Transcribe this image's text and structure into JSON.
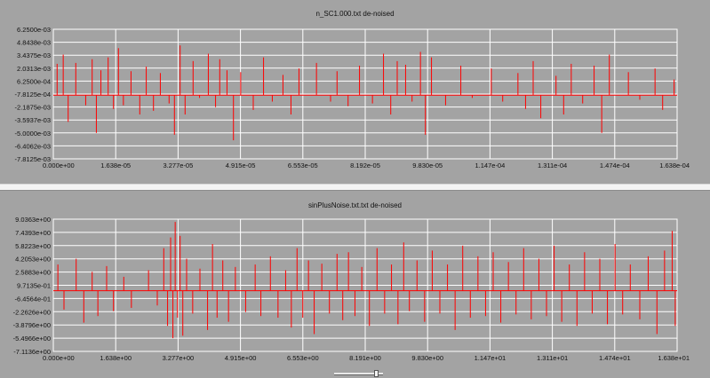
{
  "colors": {
    "background": "#a3a3a3",
    "grid": "#ffffff",
    "signal": "#ff0000"
  },
  "chart_data": [
    {
      "type": "line",
      "title": "n_SC1.000.txt de-noised",
      "xlabel": "",
      "ylabel": "",
      "xlim": [
        0,
        0.0001638
      ],
      "ylim": [
        -0.0078125,
        0.00625
      ],
      "xtick_labels": [
        "0.000e+00",
        "1.638e-05",
        "3.277e-05",
        "4.915e-05",
        "6.553e-05",
        "8.192e-05",
        "9.830e-05",
        "1.147e-04",
        "1.311e-04",
        "1.474e-04",
        "1.638e-04"
      ],
      "ytick_labels": [
        "6.2500e-03",
        "4.8438e-03",
        "3.4375e-03",
        "2.0313e-03",
        "6.2500e-04",
        "-7.8125e-04",
        "-2.1875e-03",
        "-3.5937e-03",
        "-5.0000e-03",
        "-6.4062e-03",
        "-7.8125e-03"
      ],
      "baseline": -0.0009,
      "grid": true,
      "spikes": [
        {
          "x": 1e-06,
          "v": 0.0025
        },
        {
          "x": 2.6e-06,
          "v": 0.0035
        },
        {
          "x": 3.9e-06,
          "v": -0.0038
        },
        {
          "x": 5.9e-06,
          "v": 0.0026
        },
        {
          "x": 8.5e-06,
          "v": -0.002
        },
        {
          "x": 1.02e-05,
          "v": 0.003
        },
        {
          "x": 1.13e-05,
          "v": -0.005
        },
        {
          "x": 1.25e-05,
          "v": 0.0018
        },
        {
          "x": 1.44e-05,
          "v": 0.0032
        },
        {
          "x": 1.58e-05,
          "v": -0.0024
        },
        {
          "x": 1.71e-05,
          "v": 0.0042
        },
        {
          "x": 1.84e-05,
          "v": -0.002
        },
        {
          "x": 2.04e-05,
          "v": 0.0017
        },
        {
          "x": 2.27e-05,
          "v": -0.003
        },
        {
          "x": 2.44e-05,
          "v": 0.0022
        },
        {
          "x": 2.63e-05,
          "v": -0.0026
        },
        {
          "x": 2.81e-05,
          "v": 0.0015
        },
        {
          "x": 3.04e-05,
          "v": -0.0018
        },
        {
          "x": 3.18e-05,
          "v": -0.0052
        },
        {
          "x": 3.33e-05,
          "v": 0.0045
        },
        {
          "x": 3.46e-05,
          "v": -0.003
        },
        {
          "x": 3.67e-05,
          "v": 0.0028
        },
        {
          "x": 3.84e-05,
          "v": -0.0012
        },
        {
          "x": 4.07e-05,
          "v": 0.0036
        },
        {
          "x": 4.26e-05,
          "v": -0.0022
        },
        {
          "x": 4.37e-05,
          "v": 0.003
        },
        {
          "x": 4.56e-05,
          "v": 0.0018
        },
        {
          "x": 4.73e-05,
          "v": -0.0058
        },
        {
          "x": 4.92e-05,
          "v": 0.0016
        },
        {
          "x": 5.25e-05,
          "v": -0.0025
        },
        {
          "x": 5.52e-05,
          "v": 0.0032
        },
        {
          "x": 5.75e-05,
          "v": -0.0016
        },
        {
          "x": 6.03e-05,
          "v": 0.0013
        },
        {
          "x": 6.24e-05,
          "v": -0.003
        },
        {
          "x": 6.45e-05,
          "v": 0.002
        },
        {
          "x": 6.91e-05,
          "v": 0.0026
        },
        {
          "x": 7.28e-05,
          "v": -0.0016
        },
        {
          "x": 7.45e-05,
          "v": 0.0017
        },
        {
          "x": 7.74e-05,
          "v": -0.0021
        },
        {
          "x": 8.04e-05,
          "v": 0.0023
        },
        {
          "x": 8.38e-05,
          "v": -0.0018
        },
        {
          "x": 8.67e-05,
          "v": 0.0036
        },
        {
          "x": 8.86e-05,
          "v": -0.003
        },
        {
          "x": 9.03e-05,
          "v": 0.0028
        },
        {
          "x": 9.25e-05,
          "v": 0.0024
        },
        {
          "x": 9.42e-05,
          "v": -0.0016
        },
        {
          "x": 9.64e-05,
          "v": 0.0038
        },
        {
          "x": 9.77e-05,
          "v": -0.0052
        },
        {
          "x": 9.93e-05,
          "v": 0.0032
        },
        {
          "x": 0.000103,
          "v": -0.002
        },
        {
          "x": 0.000107,
          "v": 0.0023
        },
        {
          "x": 0.00011,
          "v": -0.0012
        },
        {
          "x": 0.000115,
          "v": 0.002
        },
        {
          "x": 0.000118,
          "v": -0.0016
        },
        {
          "x": 0.000122,
          "v": 0.0015
        },
        {
          "x": 0.000124,
          "v": -0.0024
        },
        {
          "x": 0.000126,
          "v": 0.0028
        },
        {
          "x": 0.000128,
          "v": -0.0034
        },
        {
          "x": 0.000132,
          "v": 0.0012
        },
        {
          "x": 0.000134,
          "v": -0.003
        },
        {
          "x": 0.000136,
          "v": 0.0025
        },
        {
          "x": 0.000139,
          "v": -0.0018
        },
        {
          "x": 0.000142,
          "v": 0.0023
        },
        {
          "x": 0.000144,
          "v": -0.005
        },
        {
          "x": 0.000146,
          "v": 0.0035
        },
        {
          "x": 0.000151,
          "v": 0.0016
        },
        {
          "x": 0.000154,
          "v": -0.0014
        },
        {
          "x": 0.000158,
          "v": 0.002
        },
        {
          "x": 0.00016,
          "v": -0.0025
        },
        {
          "x": 0.000163,
          "v": 0.0008
        }
      ]
    },
    {
      "type": "line",
      "title": "sinPlusNoise.txt.txt de-noised",
      "xlabel": "",
      "ylabel": "",
      "xlim": [
        0,
        16.38
      ],
      "ylim": [
        -7.1136,
        9.0363
      ],
      "xtick_labels": [
        "0.000e+00",
        "1.638e+00",
        "3.277e+00",
        "4.915e+00",
        "6.553e+00",
        "8.191e+00",
        "9.830e+00",
        "1.147e+01",
        "1.311e+01",
        "1.474e+01",
        "1.638e+01"
      ],
      "ytick_labels": [
        "9.0363e+00",
        "7.4393e+00",
        "5.8223e+00",
        "4.2053e+00",
        "2.5883e+00",
        "9.7135e-01",
        "-6.4564e-01",
        "-2.2626e+00",
        "-3.8796e+00",
        "-5.4966e+00",
        "-7.1136e+00"
      ],
      "baseline": 0.3,
      "grid": true,
      "spikes": [
        {
          "x": 0.12,
          "v": 3.5
        },
        {
          "x": 0.28,
          "v": -2.0
        },
        {
          "x": 0.6,
          "v": 4.2
        },
        {
          "x": 0.8,
          "v": -3.6
        },
        {
          "x": 1.02,
          "v": 2.6
        },
        {
          "x": 1.17,
          "v": -2.8
        },
        {
          "x": 1.4,
          "v": 3.3
        },
        {
          "x": 1.58,
          "v": -2.2
        },
        {
          "x": 1.85,
          "v": 2.0
        },
        {
          "x": 2.05,
          "v": -1.8
        },
        {
          "x": 2.5,
          "v": 2.8
        },
        {
          "x": 2.73,
          "v": -1.5
        },
        {
          "x": 2.9,
          "v": 5.5
        },
        {
          "x": 3.0,
          "v": -4.0
        },
        {
          "x": 3.08,
          "v": 6.8
        },
        {
          "x": 3.14,
          "v": -5.5
        },
        {
          "x": 3.2,
          "v": 8.7
        },
        {
          "x": 3.26,
          "v": -3.0
        },
        {
          "x": 3.33,
          "v": 7.0
        },
        {
          "x": 3.4,
          "v": -5.2
        },
        {
          "x": 3.5,
          "v": 4.2
        },
        {
          "x": 3.66,
          "v": -2.5
        },
        {
          "x": 3.85,
          "v": 3.0
        },
        {
          "x": 4.05,
          "v": -4.5
        },
        {
          "x": 4.18,
          "v": 6.0
        },
        {
          "x": 4.3,
          "v": -3.0
        },
        {
          "x": 4.45,
          "v": 4.0
        },
        {
          "x": 4.6,
          "v": -3.5
        },
        {
          "x": 4.78,
          "v": 3.2
        },
        {
          "x": 5.05,
          "v": -2.3
        },
        {
          "x": 5.3,
          "v": 3.5
        },
        {
          "x": 5.45,
          "v": -2.8
        },
        {
          "x": 5.7,
          "v": 4.5
        },
        {
          "x": 5.9,
          "v": -3.0
        },
        {
          "x": 6.1,
          "v": 2.8
        },
        {
          "x": 6.25,
          "v": -4.2
        },
        {
          "x": 6.4,
          "v": 5.5
        },
        {
          "x": 6.55,
          "v": -3.0
        },
        {
          "x": 6.7,
          "v": 4.0
        },
        {
          "x": 6.85,
          "v": -5.0
        },
        {
          "x": 7.05,
          "v": 3.6
        },
        {
          "x": 7.25,
          "v": -2.5
        },
        {
          "x": 7.45,
          "v": 4.8
        },
        {
          "x": 7.6,
          "v": -3.3
        },
        {
          "x": 7.75,
          "v": 5.0
        },
        {
          "x": 7.92,
          "v": -2.8
        },
        {
          "x": 8.1,
          "v": 3.2
        },
        {
          "x": 8.3,
          "v": -4.0
        },
        {
          "x": 8.5,
          "v": 5.5
        },
        {
          "x": 8.7,
          "v": -2.5
        },
        {
          "x": 8.88,
          "v": 3.5
        },
        {
          "x": 9.05,
          "v": -3.8
        },
        {
          "x": 9.2,
          "v": 6.2
        },
        {
          "x": 9.35,
          "v": -2.2
        },
        {
          "x": 9.55,
          "v": 4.0
        },
        {
          "x": 9.75,
          "v": -3.5
        },
        {
          "x": 9.95,
          "v": 5.2
        },
        {
          "x": 10.15,
          "v": -2.5
        },
        {
          "x": 10.35,
          "v": 3.5
        },
        {
          "x": 10.55,
          "v": -4.5
        },
        {
          "x": 10.75,
          "v": 5.8
        },
        {
          "x": 10.95,
          "v": -3.0
        },
        {
          "x": 11.15,
          "v": 4.5
        },
        {
          "x": 11.35,
          "v": -2.8
        },
        {
          "x": 11.55,
          "v": 5.0
        },
        {
          "x": 11.75,
          "v": -3.6
        },
        {
          "x": 11.95,
          "v": 3.8
        },
        {
          "x": 12.15,
          "v": -2.6
        },
        {
          "x": 12.35,
          "v": 5.5
        },
        {
          "x": 12.55,
          "v": -3.2
        },
        {
          "x": 12.75,
          "v": 4.2
        },
        {
          "x": 12.95,
          "v": -2.8
        },
        {
          "x": 13.15,
          "v": 5.8
        },
        {
          "x": 13.35,
          "v": -3.5
        },
        {
          "x": 13.55,
          "v": 3.5
        },
        {
          "x": 13.75,
          "v": -4.0
        },
        {
          "x": 13.95,
          "v": 5.0
        },
        {
          "x": 14.15,
          "v": -2.5
        },
        {
          "x": 14.35,
          "v": 4.2
        },
        {
          "x": 14.55,
          "v": -3.8
        },
        {
          "x": 14.75,
          "v": 6.0
        },
        {
          "x": 14.95,
          "v": -2.6
        },
        {
          "x": 15.15,
          "v": 3.5
        },
        {
          "x": 15.4,
          "v": -3.2
        },
        {
          "x": 15.62,
          "v": 4.5
        },
        {
          "x": 15.85,
          "v": -5.0
        },
        {
          "x": 16.05,
          "v": 5.2
        },
        {
          "x": 16.25,
          "v": 7.6
        },
        {
          "x": 16.33,
          "v": -4.0
        }
      ]
    }
  ]
}
